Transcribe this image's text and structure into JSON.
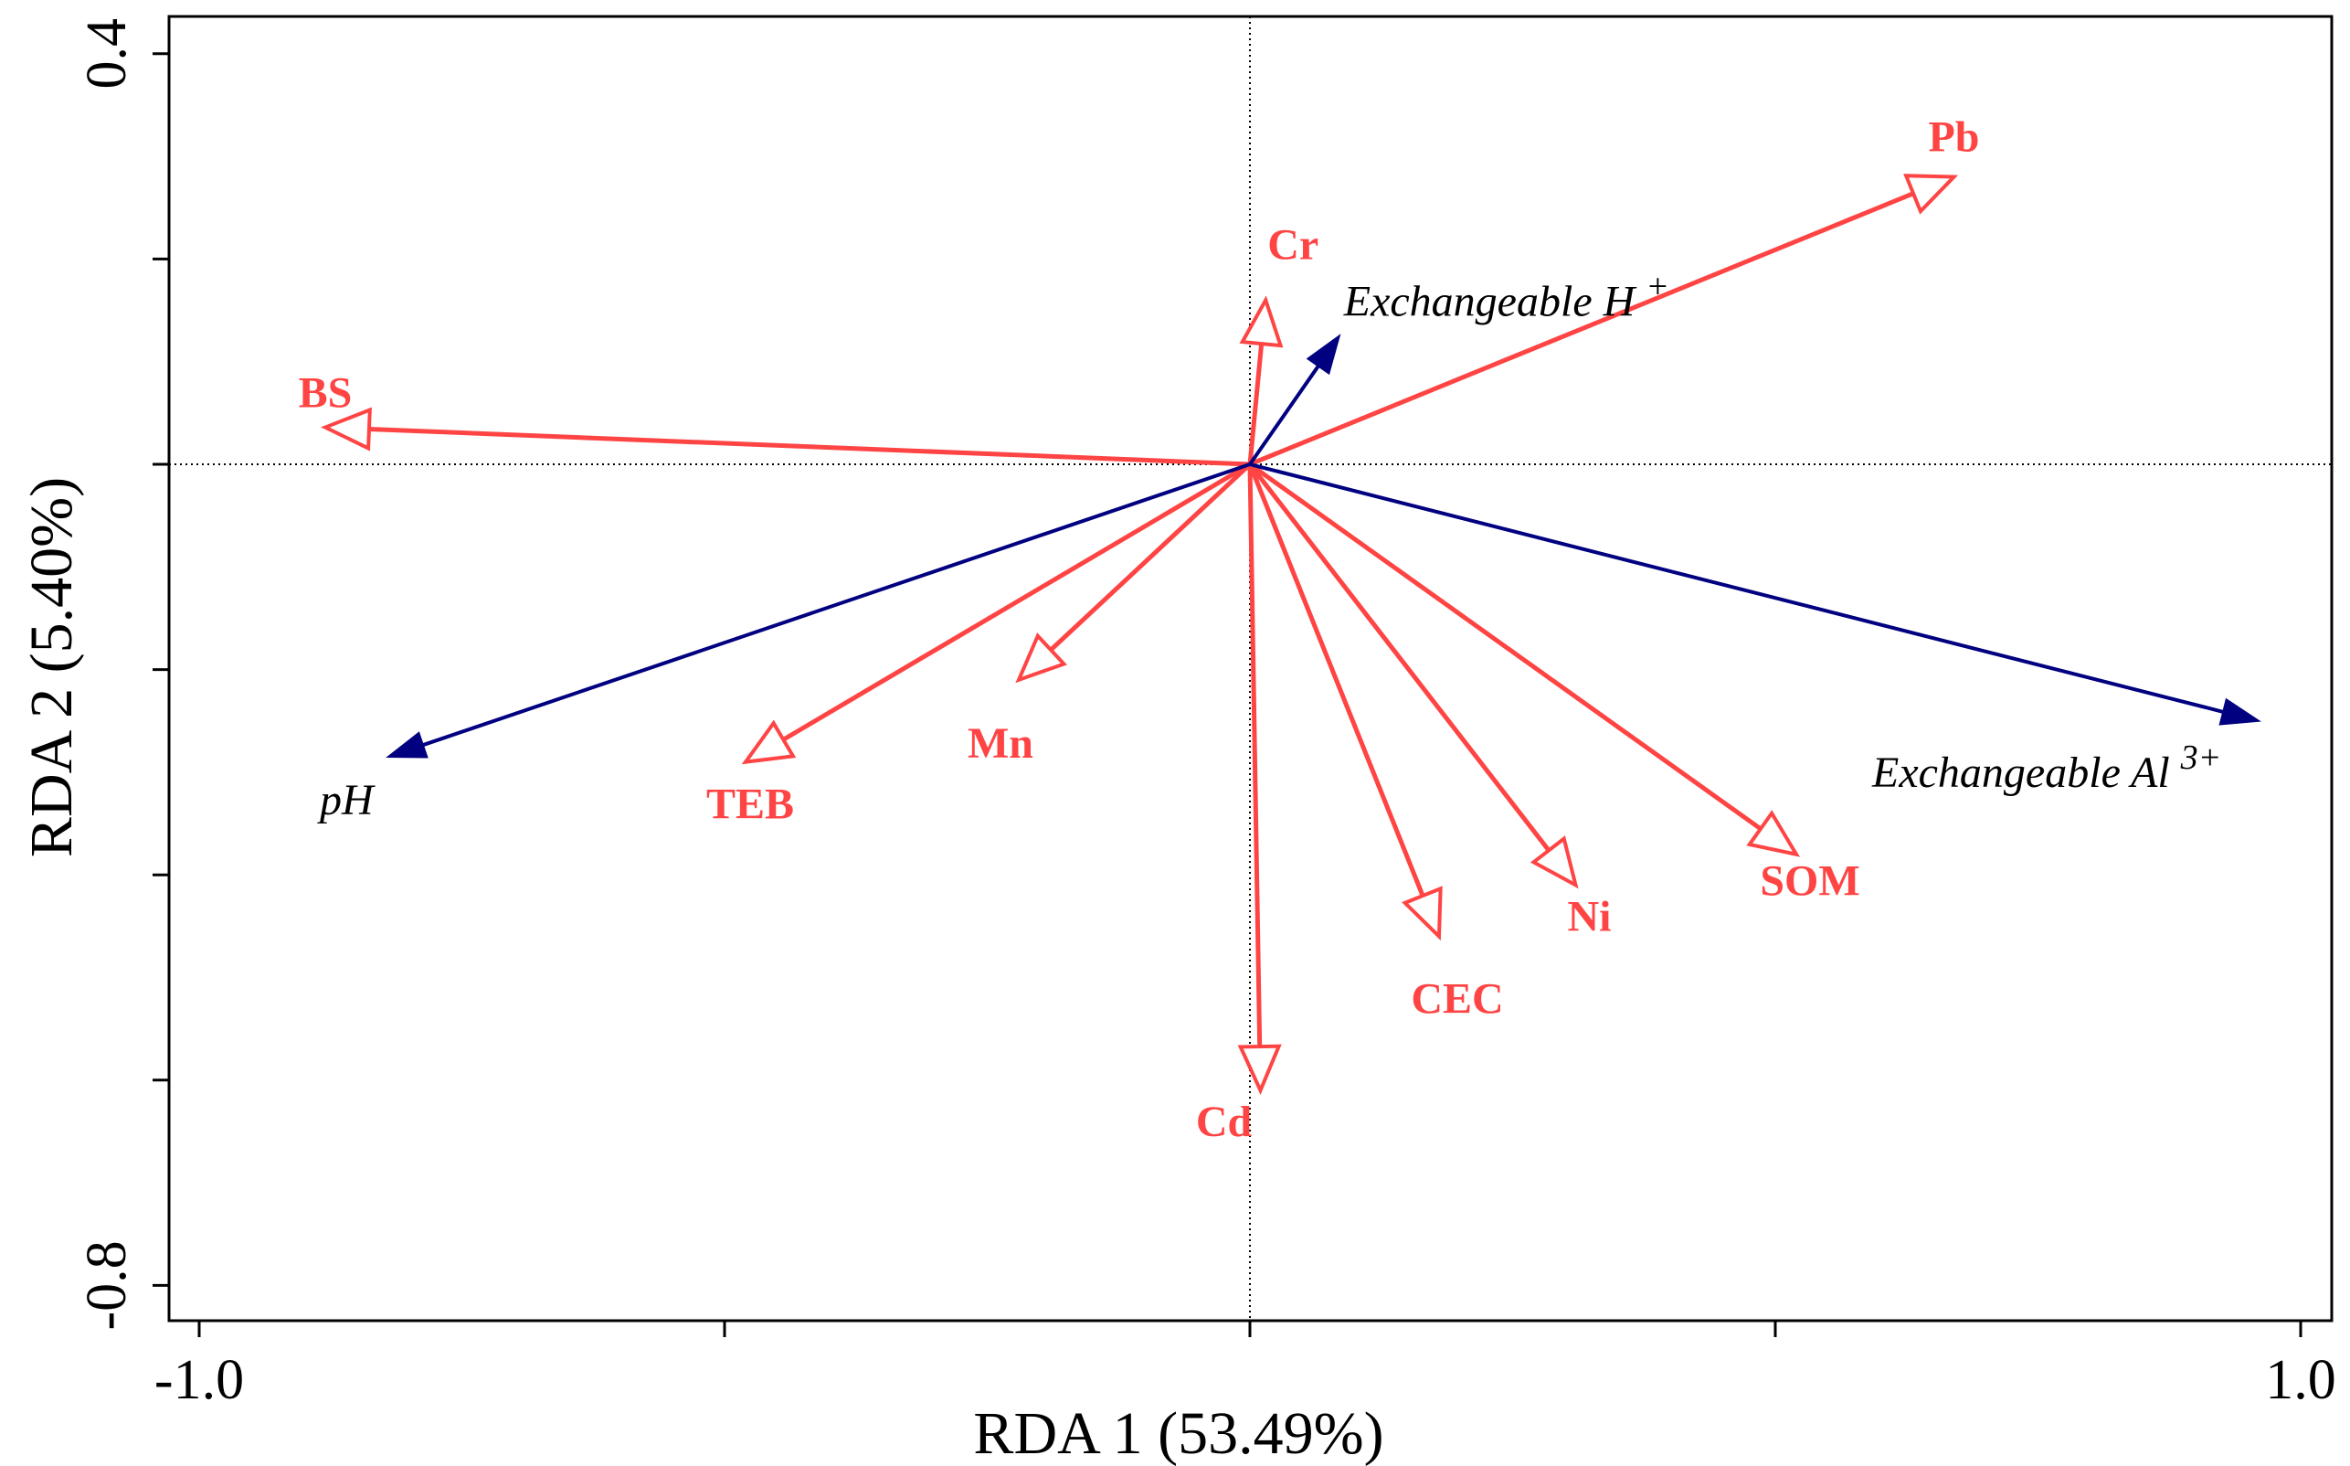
{
  "chart_data": {
    "type": "biplot",
    "xlabel": "RDA 1 (53.49%)",
    "ylabel": "RDA 2 (5.40%)",
    "xlim": [
      -1.0,
      1.0
    ],
    "ylim": [
      -0.8,
      0.4
    ],
    "x_ticks": [
      -1.0,
      -0.5,
      0.0,
      0.5,
      1.0
    ],
    "x_tick_labels": [
      "-1.0",
      "",
      "",
      "",
      "1.0"
    ],
    "y_ticks": [
      0.4,
      0.2,
      0.0,
      -0.2,
      -0.4,
      -0.6,
      -0.8
    ],
    "y_tick_labels": [
      "0.4",
      "",
      "",
      "",
      "",
      "",
      "-0.8"
    ],
    "colors": {
      "response": "#ff4444",
      "explanatory": "#000080",
      "axis": "#000000"
    },
    "response_vectors": [
      {
        "name": "Pb",
        "x": 0.67,
        "y": 0.28
      },
      {
        "name": "Cr",
        "x": 0.015,
        "y": 0.16
      },
      {
        "name": "BS",
        "x": -0.88,
        "y": 0.036
      },
      {
        "name": "Mn",
        "x": -0.22,
        "y": -0.21
      },
      {
        "name": "TEB",
        "x": -0.48,
        "y": -0.29
      },
      {
        "name": "CEC",
        "x": 0.18,
        "y": -0.46
      },
      {
        "name": "Ni",
        "x": 0.31,
        "y": -0.41
      },
      {
        "name": "SOM",
        "x": 0.52,
        "y": -0.38
      },
      {
        "name": "Cd",
        "x": 0.01,
        "y": -0.61
      }
    ],
    "explanatory_vectors": [
      {
        "name": "Exchangeable H",
        "sup": "+",
        "x": 0.085,
        "y": 0.125
      },
      {
        "name": "Exchangeable Al",
        "sup": "3+",
        "x": 0.96,
        "y": -0.25
      },
      {
        "name": "pH",
        "sup": "",
        "x": -0.82,
        "y": -0.285
      }
    ]
  }
}
